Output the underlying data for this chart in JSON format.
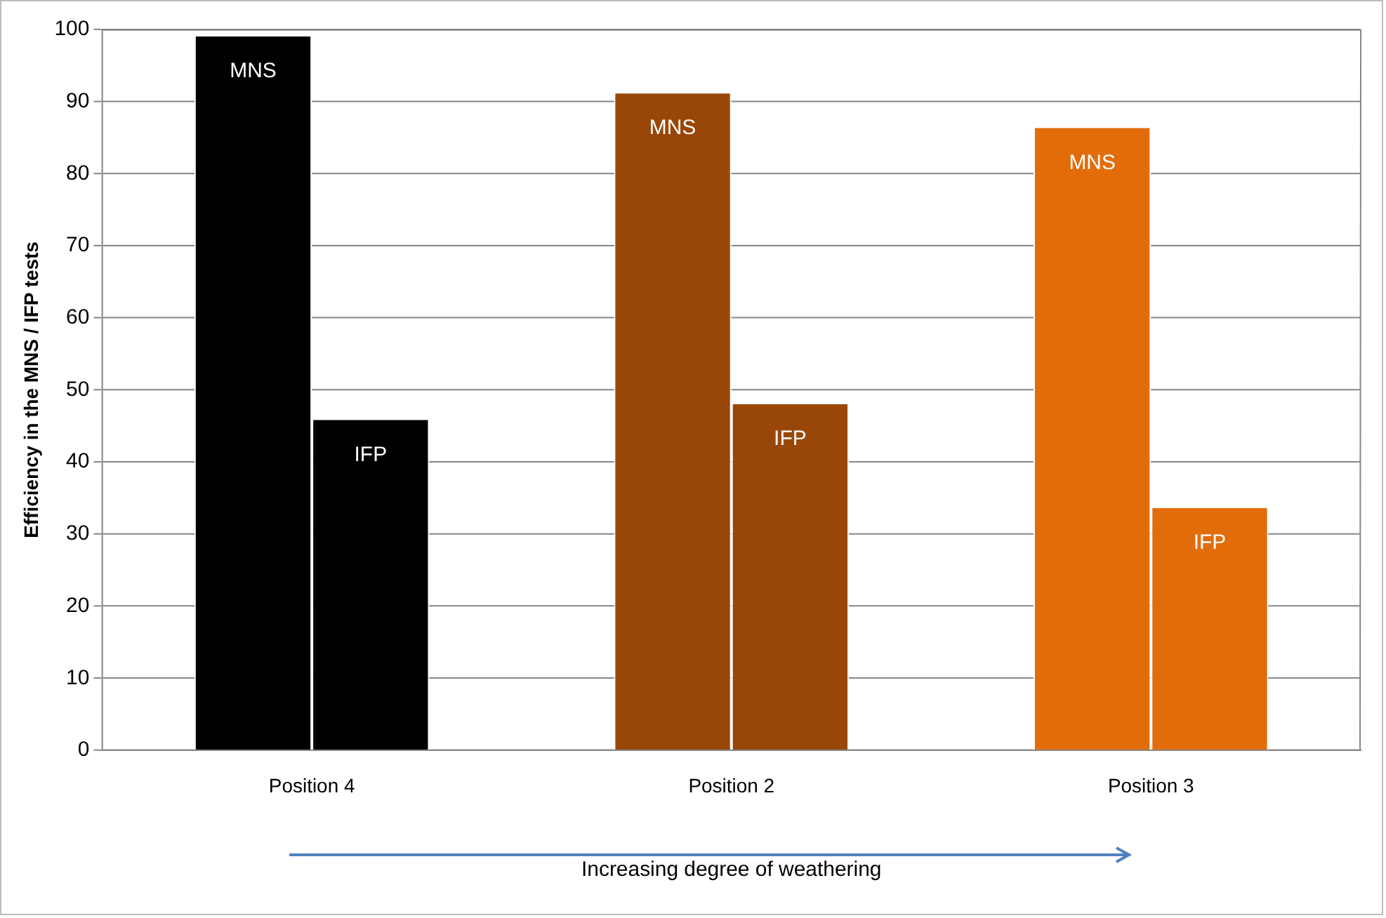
{
  "chart_data": {
    "type": "bar",
    "xlabel": "Increasing degree of weathering",
    "ylabel": "Efficiency in the MNS / IFP tests",
    "categories": [
      "Position 4",
      "Position 2",
      "Position 3"
    ],
    "series": [
      {
        "name": "MNS",
        "colors": [
          "#000000",
          "#994708",
          "#e36c0a"
        ],
        "values": [
          99.2,
          91.3,
          86.5
        ]
      },
      {
        "name": "IFP",
        "colors": [
          "#000000",
          "#994708",
          "#e36c0a"
        ],
        "values": [
          46,
          48.2,
          33.8
        ]
      }
    ],
    "ylim": [
      0,
      100
    ],
    "yticks": [
      0,
      10,
      20,
      30,
      40,
      50,
      60,
      70,
      80,
      90,
      100
    ],
    "grid": "y",
    "legend": false
  }
}
